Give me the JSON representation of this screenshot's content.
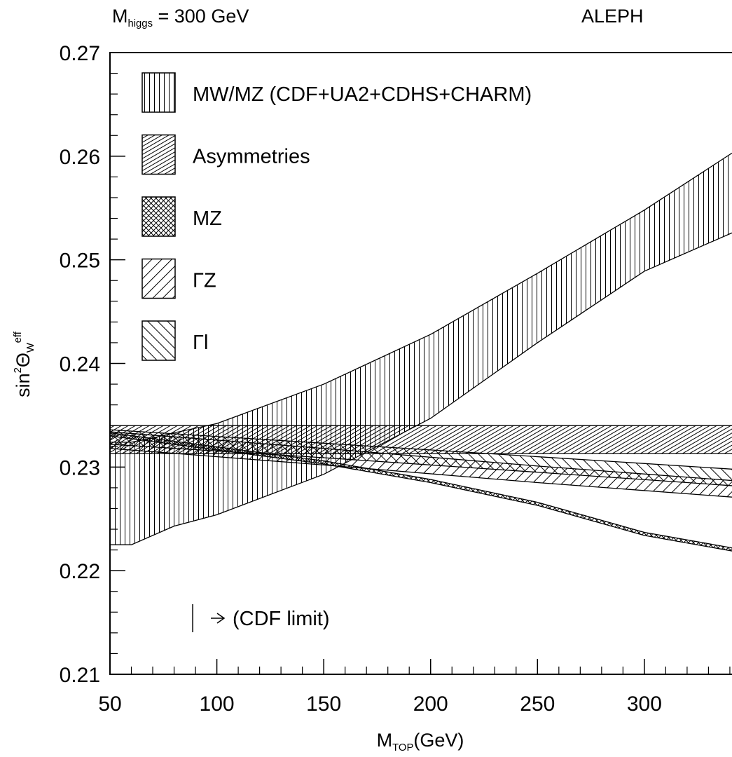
{
  "chart_data": {
    "type": "band",
    "title": [
      {
        "text": "M",
        "pos": ""
      },
      {
        "text": "higgs",
        "pos": "sub"
      },
      {
        "text": " = 300 GeV",
        "pos": ""
      }
    ],
    "experiment": "ALEPH",
    "x_label": [
      {
        "text": "M",
        "pos": ""
      },
      {
        "text": "TOP",
        "pos": "sub"
      },
      {
        "text": "(GeV)",
        "pos": ""
      }
    ],
    "y_label": [
      {
        "text": "sin",
        "pos": ""
      },
      {
        "text": "2",
        "pos": "sup"
      },
      {
        "text": "Θ",
        "pos": ""
      },
      {
        "text": "W",
        "pos": "sub"
      },
      {
        "text": "eff",
        "pos": "sup"
      }
    ],
    "xlim": [
      50,
      341
    ],
    "ylim": [
      0.21,
      0.27
    ],
    "xticks": [
      50,
      100,
      150,
      200,
      250,
      300
    ],
    "yticks": [
      0.21,
      0.22,
      0.23,
      0.24,
      0.25,
      0.26,
      0.27
    ],
    "xminorticks": [
      60,
      70,
      80,
      90,
      110,
      120,
      130,
      140,
      160,
      170,
      180,
      190,
      210,
      220,
      230,
      240,
      260,
      270,
      280,
      290,
      310,
      320,
      330,
      340
    ],
    "yminorticks": [
      0.212,
      0.214,
      0.216,
      0.218,
      0.222,
      0.224,
      0.226,
      0.228,
      0.232,
      0.234,
      0.236,
      0.238,
      0.242,
      0.244,
      0.246,
      0.248,
      0.252,
      0.254,
      0.256,
      0.258,
      0.262,
      0.264,
      0.266,
      0.268
    ],
    "series": [
      {
        "name": "MW/MZ (CDF+UA2+CDHS+CHARM)",
        "pattern": "vertical",
        "x": [
          50,
          60,
          70,
          80,
          100,
          150,
          200,
          250,
          300,
          341
        ],
        "lower": [
          0.2225,
          0.2225,
          0.2234,
          0.2243,
          0.2254,
          0.2293,
          0.2347,
          0.242,
          0.2489,
          0.2526
        ],
        "upper": [
          0.2324,
          0.2324,
          0.2328,
          0.2333,
          0.2342,
          0.238,
          0.2428,
          0.2487,
          0.2548,
          0.2603
        ]
      },
      {
        "name": "Asymmetries",
        "pattern": "dense-diagonal",
        "x": [
          50,
          341
        ],
        "lower": [
          0.2313,
          0.2313
        ],
        "upper": [
          0.234,
          0.234
        ]
      },
      {
        "name": "MZ",
        "pattern": "crosshatch",
        "x": [
          50,
          150,
          200,
          250,
          300,
          341
        ],
        "lower": [
          0.233,
          0.2303,
          0.2285,
          0.2263,
          0.2234,
          0.2219
        ],
        "upper": [
          0.2333,
          0.2306,
          0.2288,
          0.2266,
          0.2237,
          0.2222
        ]
      },
      {
        "name": "ΓZ",
        "pattern": "diagonal",
        "x": [
          50,
          150,
          250,
          341
        ],
        "lower": [
          0.2318,
          0.2302,
          0.2285,
          0.2271
        ],
        "upper": [
          0.2334,
          0.2318,
          0.2301,
          0.2287
        ]
      },
      {
        "name": "Γl",
        "pattern": "backslash",
        "x": [
          50,
          150,
          250,
          341
        ],
        "lower": [
          0.2322,
          0.2309,
          0.2295,
          0.2282
        ],
        "upper": [
          0.2336,
          0.2323,
          0.231,
          0.2298
        ]
      }
    ],
    "draw_order": [
      0,
      1,
      3,
      4,
      2
    ],
    "annotation": {
      "text": "(CDF limit)",
      "x": 88.7
    }
  }
}
